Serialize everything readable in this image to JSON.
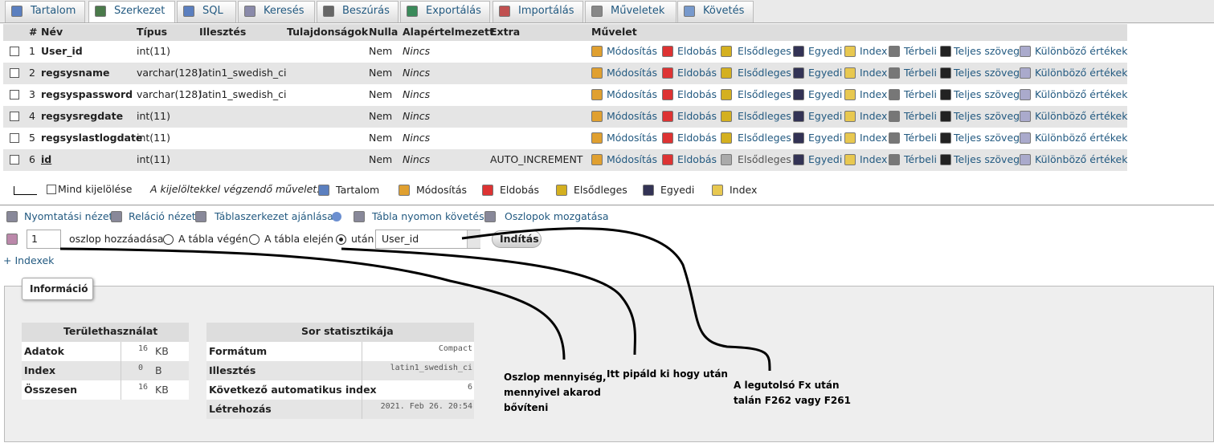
{
  "tabs": [
    "Tartalom",
    "Szerkezet",
    "SQL",
    "Keresés",
    "Beszúrás",
    "Exportálás",
    "Importálás",
    "Műveletek",
    "Követés"
  ],
  "table": {
    "headers": [
      "#",
      "Név",
      "Típus",
      "Illesztés",
      "Tulajdonságok",
      "Nulla",
      "Alapértelmezett",
      "Extra",
      "Művelet"
    ],
    "rows": [
      {
        "num": 1,
        "name": "User_id",
        "type": "int(11)",
        "null": "Nem",
        "default": "Nincs"
      },
      {
        "num": 2,
        "name": "regsysname",
        "type": "varchar(128)",
        "collation": "latin1_swedish_ci",
        "null": "Nem",
        "default": "Nincs"
      },
      {
        "num": 3,
        "name": "regsyspassword",
        "type": "varchar(128)",
        "collation": "latin1_swedish_ci",
        "null": "Nem",
        "default": "Nincs"
      },
      {
        "num": 4,
        "name": "regsysregdate",
        "type": "int(11)",
        "null": "Nem",
        "default": "Nincs"
      },
      {
        "num": 5,
        "name": "regsyslastlogdate",
        "type": "int(11)",
        "null": "Nem",
        "default": "Nincs"
      },
      {
        "num": 6,
        "name": "id",
        "type": "int(11)",
        "null": "Nem",
        "default": "Nincs",
        "extra": "AUTO_INCREMENT"
      }
    ],
    "actions": [
      "Módosítás",
      "Eldobás",
      "Elsődleges",
      "Egyedi",
      "Index",
      "Térbeli",
      "Teljes szöveg",
      "Különböző értékek"
    ]
  },
  "bulk": {
    "check_all": "Mind kijelölése",
    "with_selected": "A kijelöltekkel végzendő művelet:",
    "actions": [
      "Tartalom",
      "Módosítás",
      "Eldobás",
      "Elsődleges",
      "Egyedi",
      "Index"
    ]
  },
  "links": [
    "Nyomtatási nézet",
    "Reláció nézet",
    "Táblaszerkezet ajánlása",
    "Tábla nyomon követése",
    "Oszlopok mozgatása"
  ],
  "add_column": {
    "count": "1",
    "label": "oszlop hozzáadása",
    "options": [
      "A tábla végén",
      "A tábla elején",
      "után"
    ],
    "select": "User_id",
    "button": "Indítás"
  },
  "indexes_link": "+ Indexek",
  "info": {
    "title": "Információ",
    "space": {
      "title": "Területhasználat",
      "rows": [
        [
          "Adatok",
          "16",
          "KB"
        ],
        [
          "Index",
          "0",
          "B"
        ],
        [
          "Összesen",
          "16",
          "KB"
        ]
      ]
    },
    "stats": {
      "title": "Sor statisztikája",
      "rows": [
        [
          "Formátum",
          "Compact"
        ],
        [
          "Illesztés",
          "latin1_swedish_ci"
        ],
        [
          "Következő automatikus index",
          "6"
        ],
        [
          "Létrehozás",
          "2021. Feb 26. 20:54"
        ]
      ]
    }
  },
  "annotations": [
    [
      "Oszlop mennyiség,",
      "mennyivel akarod",
      "bővíteni"
    ],
    [
      "Itt pipáld ki hogy után"
    ],
    [
      "A legutolsó Fx után",
      "talán F262 vagy F261"
    ]
  ]
}
